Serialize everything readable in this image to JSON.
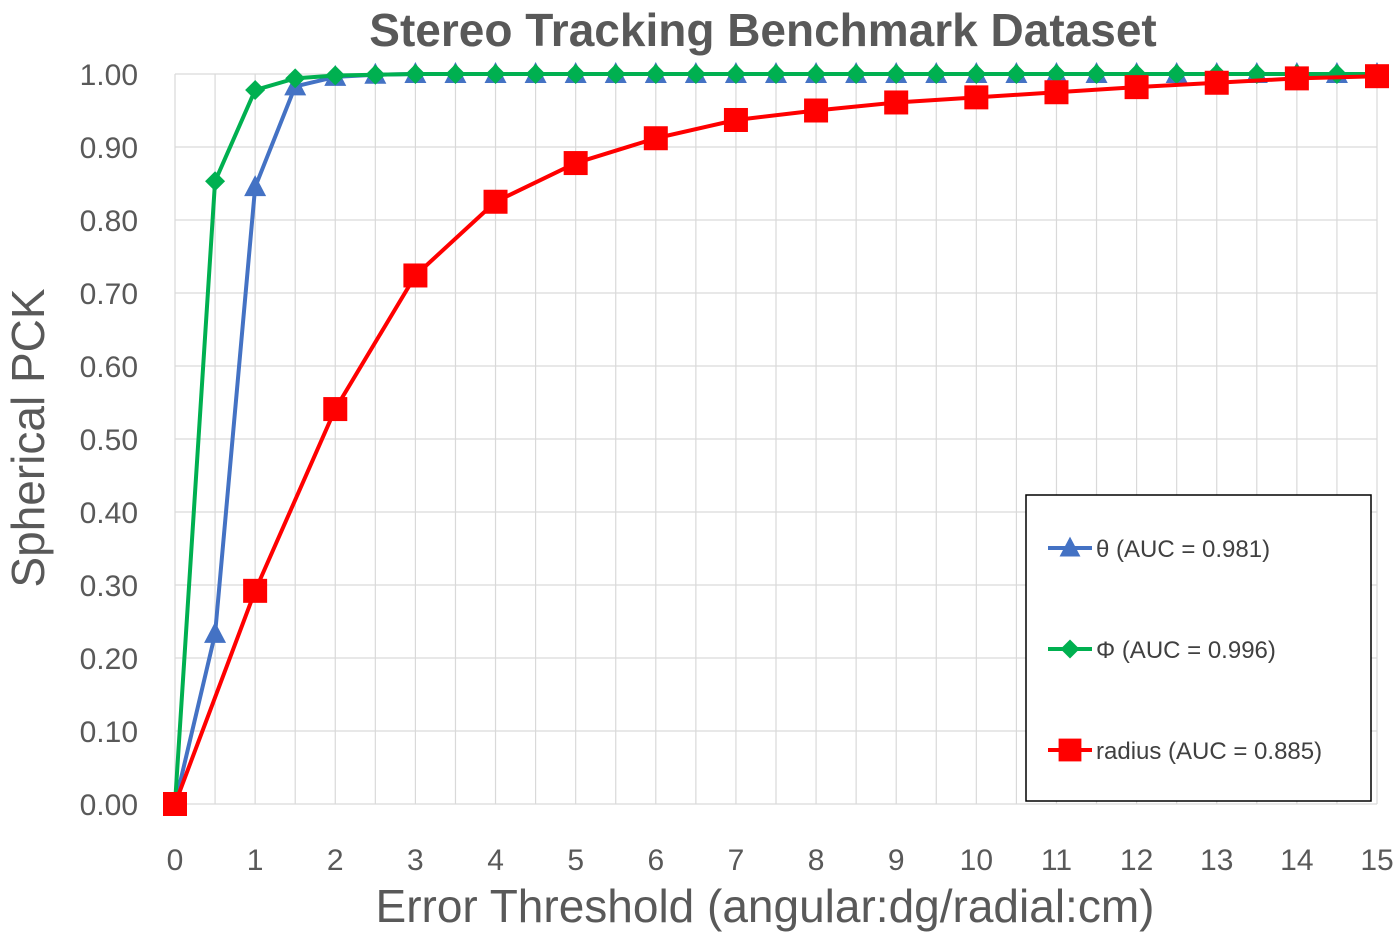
{
  "chart_data": {
    "type": "line",
    "title": "Stereo Tracking Benchmark Dataset",
    "xlabel": "Error Threshold (angular:dg/radial:cm)",
    "ylabel": "Spherical PCK",
    "xlim": [
      0,
      15
    ],
    "ylim": [
      0,
      1
    ],
    "x_ticks": [
      "0",
      "1",
      "2",
      "3",
      "4",
      "5",
      "6",
      "7",
      "8",
      "9",
      "10",
      "11",
      "12",
      "13",
      "14",
      "15"
    ],
    "y_ticks": [
      "0.00",
      "0.10",
      "0.20",
      "0.30",
      "0.40",
      "0.50",
      "0.60",
      "0.70",
      "0.80",
      "0.90",
      "1.00"
    ],
    "grid": true,
    "legend_position": "bottom-right",
    "series": [
      {
        "name": "θ (AUC = 0.981)",
        "color": "#4472C4",
        "marker": "triangle",
        "x": [
          0,
          0.5,
          1,
          1.5,
          2,
          2.5,
          3,
          3.5,
          4,
          4.5,
          5,
          5.5,
          6,
          6.5,
          7,
          7.5,
          8,
          8.5,
          9,
          9.5,
          10,
          10.5,
          11,
          11.5,
          12,
          12.5,
          13,
          13.5,
          14,
          14.5,
          15
        ],
        "values": [
          0,
          0.233,
          0.845,
          0.983,
          0.996,
          0.999,
          1,
          1,
          1,
          1,
          1,
          1,
          1,
          1,
          1,
          1,
          1,
          1,
          1,
          1,
          1,
          1,
          1,
          1,
          1,
          1,
          1,
          1,
          1,
          1,
          1
        ]
      },
      {
        "name": "Φ (AUC = 0.996)",
        "color": "#00B050",
        "marker": "diamond",
        "x": [
          0,
          0.5,
          1,
          1.5,
          2,
          2.5,
          3,
          3.5,
          4,
          4.5,
          5,
          5.5,
          6,
          6.5,
          7,
          7.5,
          8,
          8.5,
          9,
          9.5,
          10,
          10.5,
          11,
          11.5,
          12,
          12.5,
          13,
          13.5,
          14,
          14.5,
          15
        ],
        "values": [
          0,
          0.853,
          0.978,
          0.994,
          0.998,
          0.999,
          1,
          1,
          1,
          1,
          1,
          1,
          1,
          1,
          1,
          1,
          1,
          1,
          1,
          1,
          1,
          1,
          1,
          1,
          1,
          1,
          1,
          1,
          1,
          1,
          1
        ]
      },
      {
        "name": "radius (AUC = 0.885)",
        "color": "#FF0000",
        "marker": "square",
        "x": [
          0,
          1,
          2,
          3,
          4,
          5,
          6,
          7,
          8,
          9,
          10,
          11,
          12,
          13,
          14,
          15
        ],
        "values": [
          0,
          0.292,
          0.541,
          0.724,
          0.825,
          0.878,
          0.912,
          0.937,
          0.95,
          0.961,
          0.968,
          0.975,
          0.982,
          0.988,
          0.994,
          0.997
        ]
      }
    ]
  }
}
